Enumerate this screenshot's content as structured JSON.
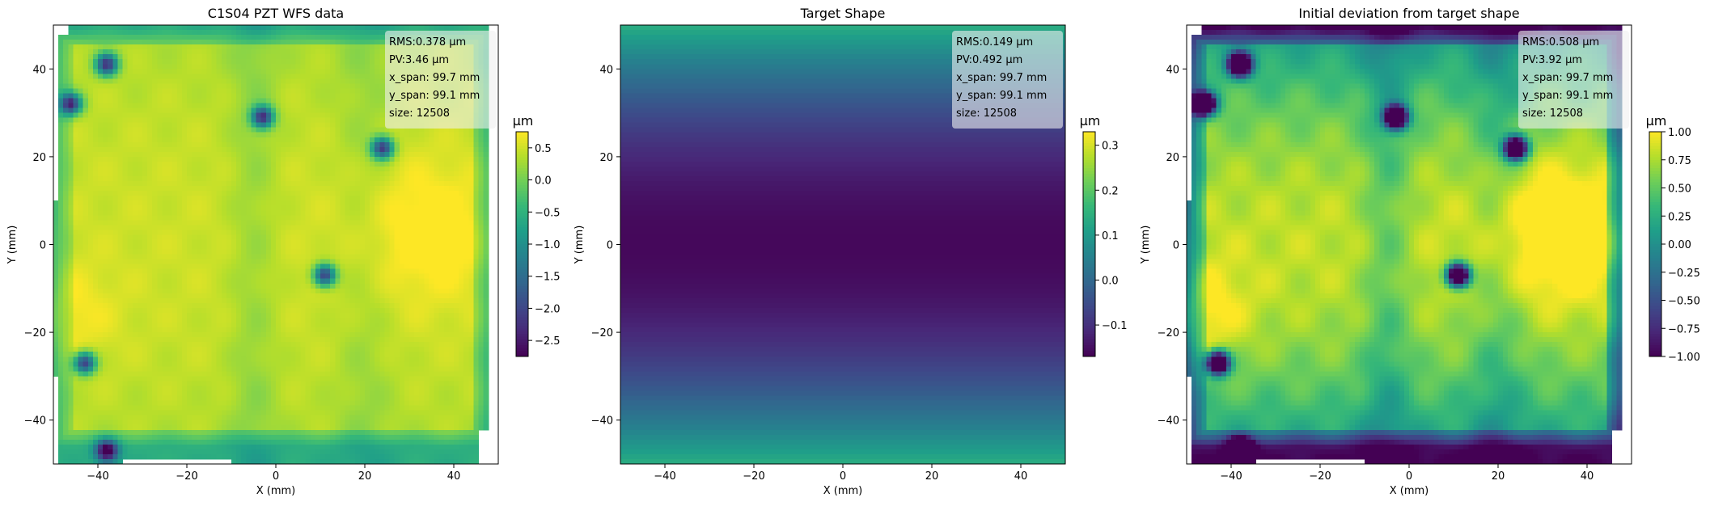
{
  "colormap": [
    "#440154",
    "#482878",
    "#3e4989",
    "#31688e",
    "#26828e",
    "#1f9e89",
    "#35b779",
    "#6ece58",
    "#b5de2b",
    "#fde725"
  ],
  "annotation_box_color": "#f0f0f0",
  "chart_data": [
    {
      "type": "heatmap",
      "title": "C1S04 PZT WFS data",
      "xlabel": "X (mm)",
      "ylabel": "Y (mm)",
      "xlim": [
        -50,
        50
      ],
      "ylim": [
        -50,
        50
      ],
      "xticks": [
        -40,
        -20,
        0,
        20,
        40
      ],
      "xtick_labels": [
        "−40",
        "−20",
        "0",
        "20",
        "40"
      ],
      "yticks": [
        40,
        20,
        0,
        -20,
        -40
      ],
      "ytick_labels": [
        "40",
        "20",
        "0",
        "−20",
        "−40"
      ],
      "annotations": [
        "RMS:0.378 μm",
        "PV:3.46 μm",
        "x_span: 99.7 mm",
        "y_span: 99.1 mm",
        "size: 12508"
      ],
      "colorbar": {
        "label": "μm",
        "range": [
          -2.75,
          0.75
        ],
        "ticks": [
          0.5,
          0.0,
          -0.5,
          -1.0,
          -1.5,
          -2.0,
          -2.5
        ],
        "tick_labels": [
          "0.5",
          "0.0",
          "−0.5",
          "−1.0",
          "−1.5",
          "−2.0",
          "−2.5"
        ]
      }
    },
    {
      "type": "heatmap",
      "title": "Target Shape",
      "xlabel": "X (mm)",
      "ylabel": "Y (mm)",
      "xlim": [
        -50,
        50
      ],
      "ylim": [
        -50,
        50
      ],
      "xticks": [
        -40,
        -20,
        0,
        20,
        40
      ],
      "xtick_labels": [
        "−40",
        "−20",
        "0",
        "20",
        "40"
      ],
      "yticks": [
        40,
        20,
        0,
        -20,
        -40
      ],
      "ytick_labels": [
        "40",
        "20",
        "0",
        "−20",
        "−40"
      ],
      "annotations": [
        "RMS:0.149 μm",
        "PV:0.492 μm",
        "x_span: 99.7 mm",
        "y_span: 99.1 mm",
        "size: 12508"
      ],
      "colorbar": {
        "label": "μm",
        "range": [
          -0.17,
          0.33
        ],
        "ticks": [
          0.3,
          0.2,
          0.1,
          0.0,
          -0.1
        ],
        "tick_labels": [
          "0.3",
          "0.2",
          "0.1",
          "0.0",
          "−0.1"
        ]
      }
    },
    {
      "type": "heatmap",
      "title": "Initial deviation from target shape",
      "xlabel": "X (mm)",
      "ylabel": "Y (mm)",
      "xlim": [
        -50,
        50
      ],
      "ylim": [
        -50,
        50
      ],
      "xticks": [
        -40,
        -20,
        0,
        20,
        40
      ],
      "xtick_labels": [
        "−40",
        "−20",
        "0",
        "20",
        "40"
      ],
      "yticks": [
        40,
        20,
        0,
        -20,
        -40
      ],
      "ytick_labels": [
        "40",
        "20",
        "0",
        "−20",
        "−40"
      ],
      "annotations": [
        "RMS:0.508 μm",
        "PV:3.92 μm",
        "x_span: 99.7 mm",
        "y_span: 99.1 mm",
        "size: 12508"
      ],
      "colorbar": {
        "label": "μm",
        "range": [
          -1.0,
          1.0
        ],
        "ticks": [
          1.0,
          0.75,
          0.5,
          0.25,
          0.0,
          -0.25,
          -0.5,
          -0.75,
          -1.0
        ],
        "tick_labels": [
          "1.00",
          "0.75",
          "0.50",
          "0.25",
          "0.00",
          "−0.25",
          "−0.50",
          "−0.75",
          "−1.00"
        ]
      }
    }
  ]
}
